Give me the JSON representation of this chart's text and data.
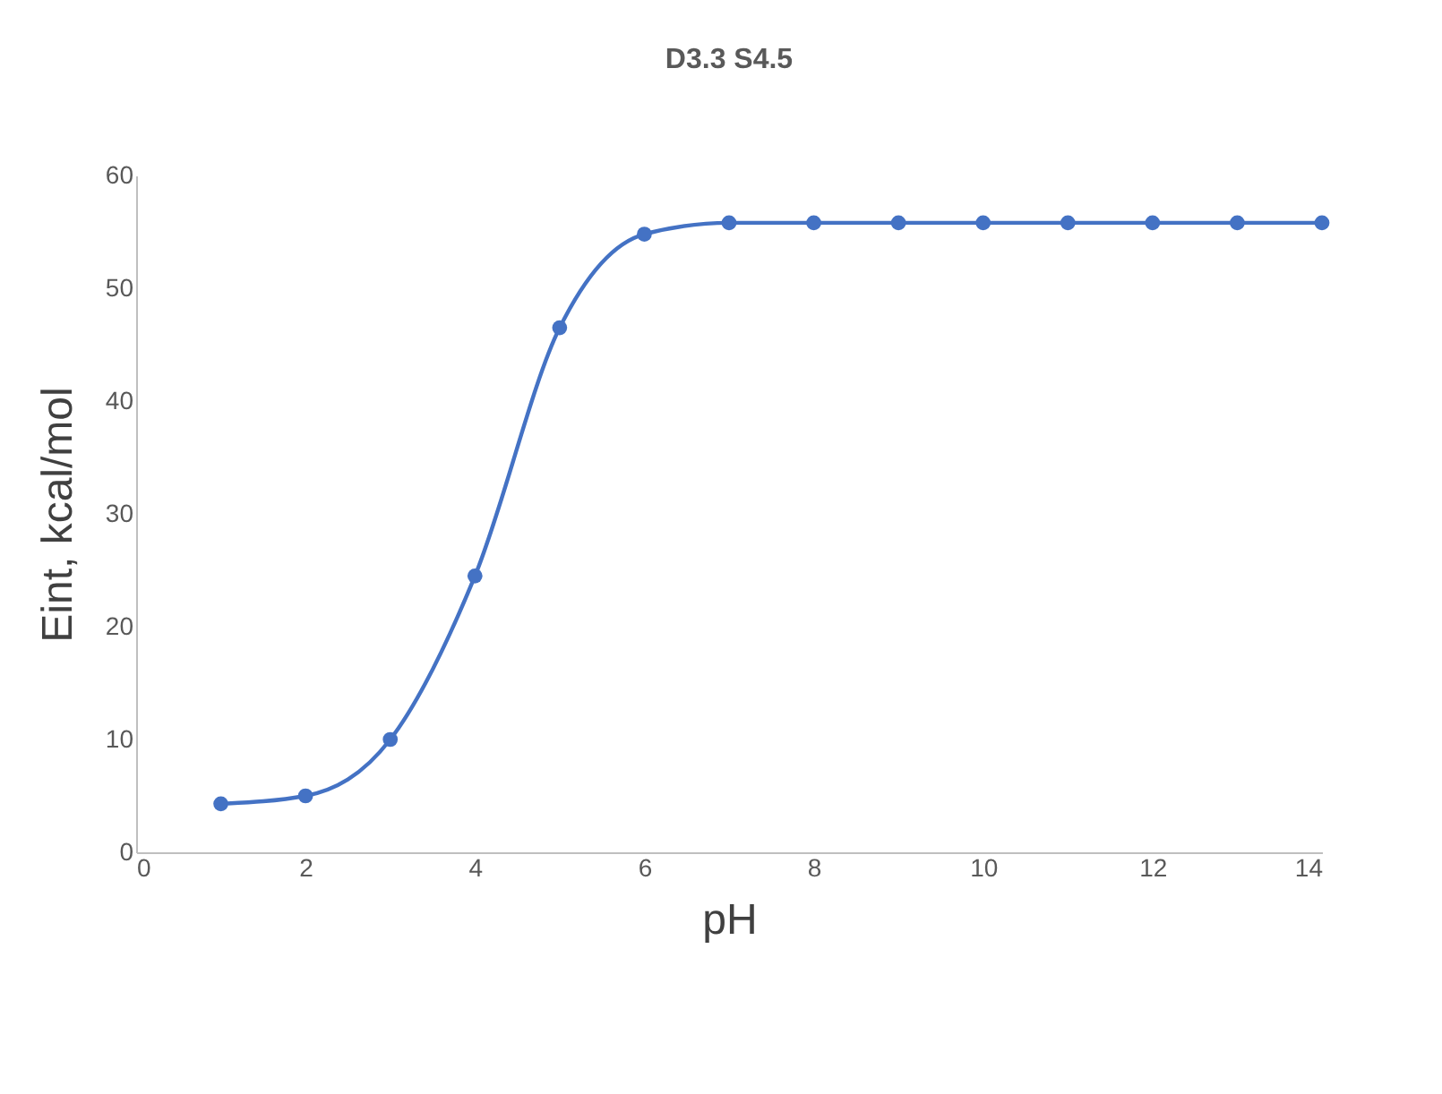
{
  "chart_data": {
    "type": "line",
    "title": "D3.3 S4.5",
    "xlabel": "pH",
    "ylabel": "Eint, kcal/mol",
    "x": [
      1,
      2,
      3,
      4,
      5,
      6,
      7,
      8,
      9,
      10,
      11,
      12,
      13,
      14
    ],
    "series": [
      {
        "color": "#4472c4",
        "values": [
          4.3,
          5.0,
          10.0,
          24.5,
          46.5,
          54.8,
          55.8,
          55.8,
          55.8,
          55.8,
          55.8,
          55.8,
          55.8,
          55.8
        ]
      }
    ],
    "xlim": [
      0,
      14
    ],
    "xticks": [
      0,
      2,
      4,
      6,
      8,
      10,
      12,
      14
    ],
    "ylim": [
      0,
      60
    ],
    "yticks": [
      0,
      10,
      20,
      30,
      40,
      50,
      60
    ],
    "grid": false,
    "marker": "circle",
    "line_style": "solid"
  }
}
